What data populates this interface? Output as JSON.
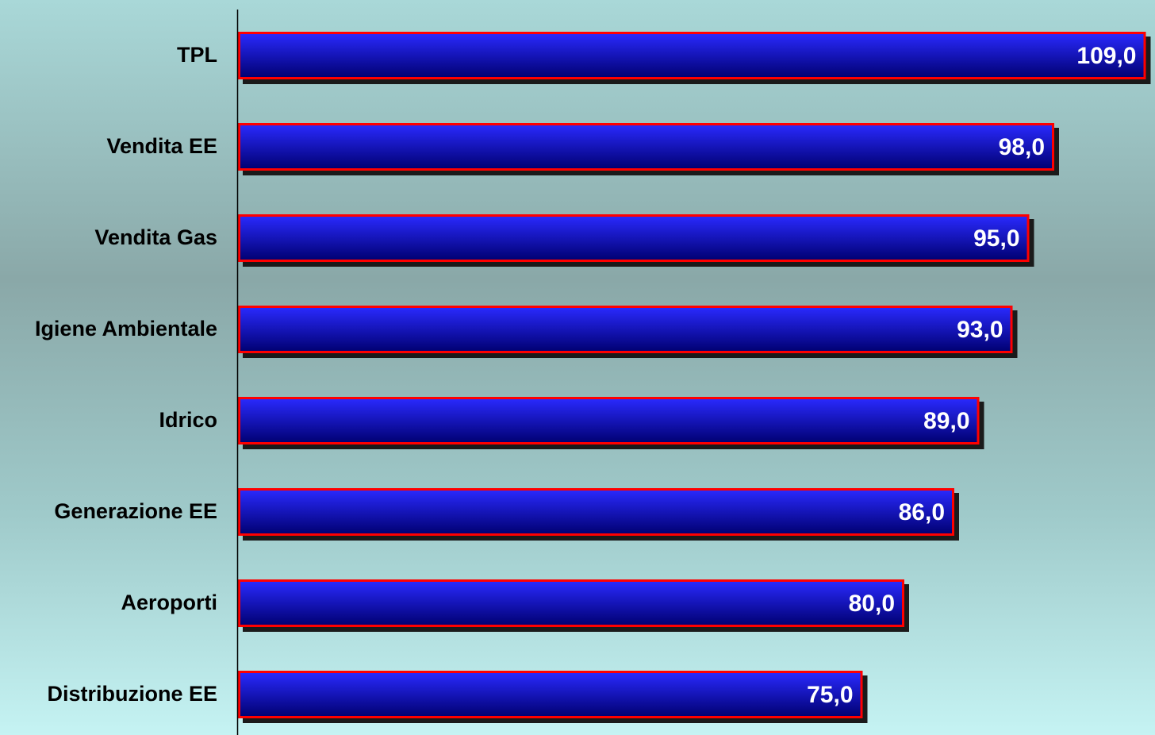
{
  "chart_data": {
    "type": "bar",
    "orientation": "horizontal",
    "categories": [
      "TPL",
      "Vendita EE",
      "Vendita Gas",
      "Igiene Ambientale",
      "Idrico",
      "Generazione EE",
      "Aeroporti",
      "Distribuzione EE"
    ],
    "values": [
      109.0,
      98.0,
      95.0,
      93.0,
      89.0,
      86.0,
      80.0,
      75.0
    ],
    "data_labels": [
      "109,0",
      "98,0",
      "95,0",
      "93,0",
      "89,0",
      "86,0",
      "80,0",
      "75,0"
    ],
    "title": "",
    "xlabel": "",
    "ylabel": "",
    "xlim": [
      0,
      110
    ],
    "grid": false,
    "legend": "none",
    "colors": {
      "bar_top": "#2a2aff",
      "bar_bottom": "#000070",
      "bar_border": "#ff0000",
      "shadow": "#1a1a1a",
      "value_text": "#ffffff",
      "category_text": "#000000",
      "axis": "#000000"
    }
  }
}
